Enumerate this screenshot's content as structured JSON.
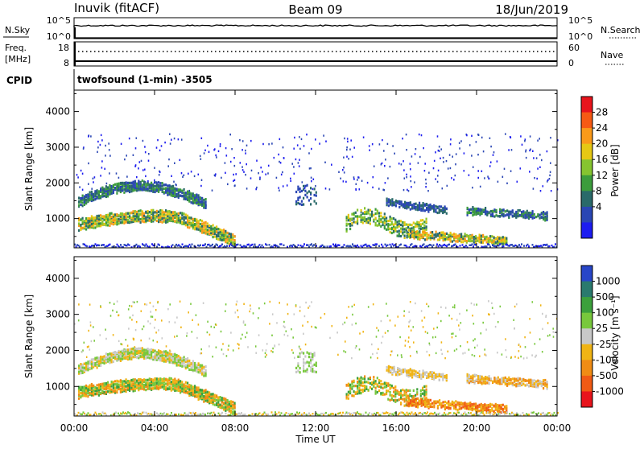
{
  "header": {
    "station": "Inuvik",
    "mode": "(fitACF)",
    "beam": "Beam 09",
    "date": "18/Jun/2019"
  },
  "top_panels": {
    "nsky_label": "N.Sky",
    "nsky_ticks": [
      "10^5",
      "10^0"
    ],
    "nsearch_label": "N.Search",
    "nsearch_ticks": [
      "10^5",
      "10^0"
    ],
    "freq_label": "Freq.",
    "freq_unit": "[MHz]",
    "freq_ticks": [
      "18",
      "8"
    ],
    "nave_label": "Nave",
    "nave_ticks": [
      "60",
      "0"
    ],
    "cpid_label": "CPID",
    "cpid_text": "twofsound (1-min) -3505"
  },
  "chart_data": [
    {
      "type": "heatmap",
      "ylabel": "Slant Range [km]",
      "yticks": [
        "4000",
        "3000",
        "2000",
        "1000"
      ],
      "ylim": [
        180,
        4600
      ],
      "xlim": [
        0,
        24
      ],
      "xticks": [
        0,
        4,
        8,
        12,
        16,
        20,
        24
      ],
      "colorbar": {
        "label": "Power [dB]",
        "ticks": [
          "28",
          "24",
          "20",
          "16",
          "12",
          "8",
          "4"
        ],
        "colors": [
          "#e8141c",
          "#f65a14",
          "#fa9a1a",
          "#e6c814",
          "#86c430",
          "#3c9c3c",
          "#2a6a6a",
          "#2a46b4",
          "#1c1cf0"
        ]
      }
    },
    {
      "type": "heatmap",
      "ylabel": "Slant Range [km]",
      "yticks": [
        "4000",
        "3000",
        "2000",
        "1000"
      ],
      "ylim": [
        180,
        4600
      ],
      "xlim": [
        0,
        24
      ],
      "xticks": [
        0,
        4,
        8,
        12,
        16,
        20,
        24
      ],
      "colorbar": {
        "label": "Velocity [m s⁻¹]",
        "ticks": [
          "1000",
          "500",
          "100",
          "25",
          "-25",
          "-100",
          "-500",
          "-1000"
        ],
        "colors": [
          "#2846c8",
          "#2a7a6e",
          "#3ca03c",
          "#78c83c",
          "#c8c8c8",
          "#f0b414",
          "#f08c14",
          "#f05a14",
          "#e8141c"
        ]
      }
    }
  ],
  "xaxis": {
    "ticks": [
      "00:00",
      "04:00",
      "08:00",
      "12:00",
      "16:00",
      "20:00",
      "00:00"
    ],
    "label": "Time UT"
  }
}
